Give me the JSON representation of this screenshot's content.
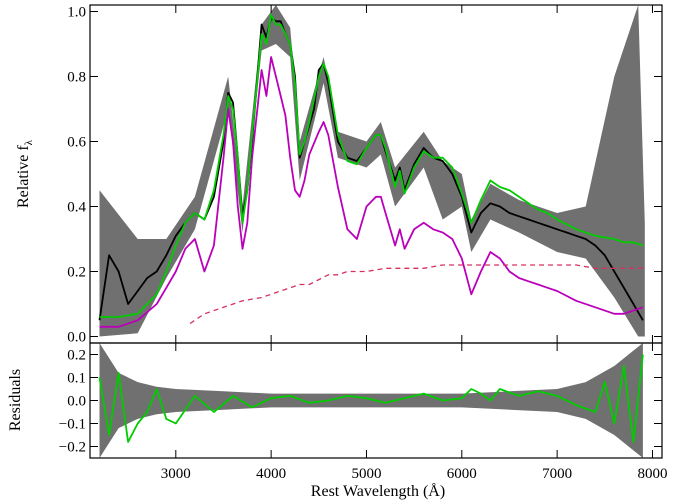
{
  "chart_data": [
    {
      "type": "line",
      "panel": "top",
      "ylabel": "Relative f",
      "ylabel_sub": "λ",
      "xlim": [
        2100,
        8100
      ],
      "ylim": [
        -0.02,
        1.02
      ],
      "x_ticks": [
        3000,
        4000,
        5000,
        6000,
        7000,
        8000
      ],
      "y_ticks": [
        0.0,
        0.2,
        0.4,
        0.6,
        0.8,
        1.0
      ],
      "y_tick_labels": [
        "0.0",
        "0.2",
        "0.4",
        "0.6",
        "0.8",
        "1.0"
      ],
      "grid": false,
      "series": [
        {
          "style": "gray band",
          "color": "#707070",
          "x": [
            2200,
            2600,
            2900,
            3200,
            3550,
            3700,
            3900,
            4050,
            4200,
            4300,
            4550,
            4700,
            5000,
            5150,
            5300,
            5600,
            5800,
            6000,
            6100,
            6300,
            6600,
            7000,
            7300,
            7600,
            7850,
            7920
          ],
          "low": [
            0.0,
            0.01,
            0.18,
            0.33,
            0.7,
            0.32,
            0.88,
            0.9,
            0.86,
            0.48,
            0.78,
            0.55,
            0.52,
            0.56,
            0.4,
            0.52,
            0.36,
            0.4,
            0.26,
            0.36,
            0.32,
            0.26,
            0.24,
            0.12,
            0.0,
            0.0
          ],
          "high": [
            0.45,
            0.3,
            0.3,
            0.43,
            0.8,
            0.4,
            0.96,
            1.02,
            0.95,
            0.6,
            0.86,
            0.63,
            0.6,
            0.66,
            0.52,
            0.63,
            0.54,
            0.5,
            0.36,
            0.47,
            0.42,
            0.38,
            0.4,
            0.8,
            1.02,
            0.35
          ]
        },
        {
          "name": "",
          "style": "observed spectrum",
          "color": "#000000",
          "x": [
            2200,
            2300,
            2400,
            2500,
            2600,
            2700,
            2800,
            2900,
            3000,
            3100,
            3200,
            3300,
            3400,
            3500,
            3550,
            3600,
            3650,
            3700,
            3750,
            3800,
            3900,
            3950,
            4000,
            4050,
            4100,
            4150,
            4200,
            4250,
            4300,
            4350,
            4400,
            4450,
            4500,
            4550,
            4600,
            4700,
            4800,
            4900,
            5000,
            5100,
            5150,
            5200,
            5300,
            5350,
            5400,
            5500,
            5600,
            5700,
            5800,
            5900,
            6000,
            6100,
            6200,
            6300,
            6400,
            6500,
            6600,
            6700,
            6800,
            6900,
            7000,
            7100,
            7200,
            7300,
            7400,
            7500,
            7600,
            7700,
            7800,
            7900
          ],
          "y": [
            0.05,
            0.25,
            0.2,
            0.1,
            0.14,
            0.18,
            0.2,
            0.25,
            0.31,
            0.35,
            0.38,
            0.36,
            0.43,
            0.6,
            0.75,
            0.72,
            0.55,
            0.37,
            0.45,
            0.6,
            0.96,
            0.92,
            0.98,
            0.97,
            0.97,
            0.93,
            0.9,
            0.8,
            0.55,
            0.6,
            0.65,
            0.7,
            0.82,
            0.84,
            0.78,
            0.6,
            0.55,
            0.54,
            0.58,
            0.62,
            0.62,
            0.57,
            0.48,
            0.52,
            0.45,
            0.53,
            0.58,
            0.55,
            0.54,
            0.5,
            0.43,
            0.32,
            0.38,
            0.41,
            0.4,
            0.38,
            0.37,
            0.36,
            0.35,
            0.34,
            0.33,
            0.32,
            0.31,
            0.3,
            0.28,
            0.25,
            0.2,
            0.15,
            0.1,
            0.05
          ]
        },
        {
          "name": "",
          "style": "model fit",
          "color": "#00cc00",
          "x": [
            2200,
            2400,
            2600,
            2800,
            2900,
            3000,
            3100,
            3200,
            3300,
            3400,
            3500,
            3550,
            3600,
            3650,
            3700,
            3750,
            3800,
            3900,
            3950,
            4000,
            4050,
            4100,
            4150,
            4200,
            4250,
            4300,
            4350,
            4400,
            4500,
            4550,
            4600,
            4700,
            4800,
            4900,
            5000,
            5100,
            5150,
            5200,
            5300,
            5350,
            5400,
            5500,
            5600,
            5700,
            5800,
            5900,
            6000,
            6100,
            6200,
            6300,
            6400,
            6500,
            6600,
            6700,
            6800,
            6900,
            7000,
            7200,
            7400,
            7600,
            7700,
            7800,
            7900
          ],
          "y": [
            0.06,
            0.06,
            0.07,
            0.13,
            0.2,
            0.28,
            0.35,
            0.38,
            0.36,
            0.45,
            0.62,
            0.74,
            0.7,
            0.55,
            0.35,
            0.45,
            0.62,
            0.93,
            0.9,
            0.99,
            0.96,
            0.96,
            0.93,
            0.9,
            0.78,
            0.56,
            0.6,
            0.66,
            0.8,
            0.84,
            0.8,
            0.62,
            0.54,
            0.53,
            0.58,
            0.62,
            0.62,
            0.58,
            0.46,
            0.51,
            0.44,
            0.52,
            0.57,
            0.55,
            0.55,
            0.52,
            0.44,
            0.35,
            0.42,
            0.48,
            0.46,
            0.45,
            0.43,
            0.41,
            0.39,
            0.38,
            0.36,
            0.33,
            0.31,
            0.3,
            0.29,
            0.29,
            0.28
          ]
        },
        {
          "name": "",
          "style": "component",
          "color": "#bb00bb",
          "x": [
            2200,
            2400,
            2600,
            2800,
            2900,
            3000,
            3100,
            3200,
            3300,
            3400,
            3500,
            3550,
            3600,
            3650,
            3700,
            3750,
            3800,
            3900,
            3950,
            4000,
            4050,
            4100,
            4150,
            4200,
            4250,
            4300,
            4350,
            4400,
            4500,
            4550,
            4600,
            4700,
            4800,
            4900,
            5000,
            5100,
            5150,
            5200,
            5300,
            5350,
            5400,
            5500,
            5600,
            5700,
            5800,
            5900,
            6000,
            6100,
            6200,
            6300,
            6400,
            6500,
            6600,
            6700,
            6800,
            6900,
            7000,
            7200,
            7400,
            7600,
            7700,
            7800,
            7900
          ],
          "y": [
            0.03,
            0.03,
            0.05,
            0.1,
            0.15,
            0.2,
            0.27,
            0.3,
            0.2,
            0.28,
            0.55,
            0.7,
            0.6,
            0.4,
            0.27,
            0.35,
            0.55,
            0.82,
            0.74,
            0.86,
            0.8,
            0.74,
            0.68,
            0.55,
            0.45,
            0.43,
            0.48,
            0.56,
            0.63,
            0.66,
            0.62,
            0.46,
            0.33,
            0.3,
            0.4,
            0.43,
            0.43,
            0.38,
            0.28,
            0.33,
            0.27,
            0.33,
            0.35,
            0.33,
            0.32,
            0.3,
            0.24,
            0.13,
            0.2,
            0.26,
            0.24,
            0.2,
            0.18,
            0.17,
            0.16,
            0.15,
            0.14,
            0.11,
            0.09,
            0.07,
            0.07,
            0.08,
            0.09
          ]
        },
        {
          "name": "",
          "style": "dashed component",
          "color": "#d6305f",
          "x": [
            3150,
            3300,
            3500,
            3700,
            3900,
            4100,
            4300,
            4400,
            4600,
            4700,
            4800,
            5000,
            5200,
            5400,
            5600,
            5800,
            6000,
            6200,
            6400,
            6600,
            6800,
            7000,
            7200,
            7400,
            7600,
            7800,
            7900
          ],
          "y": [
            0.04,
            0.07,
            0.09,
            0.11,
            0.12,
            0.14,
            0.16,
            0.16,
            0.19,
            0.19,
            0.2,
            0.2,
            0.21,
            0.21,
            0.21,
            0.22,
            0.22,
            0.22,
            0.22,
            0.22,
            0.22,
            0.22,
            0.22,
            0.21,
            0.21,
            0.21,
            0.21
          ]
        }
      ]
    },
    {
      "type": "line",
      "panel": "bottom",
      "xlabel": "Rest Wavelength (Å)",
      "ylabel": "Residuals",
      "xlim": [
        2100,
        8100
      ],
      "ylim": [
        -0.25,
        0.25
      ],
      "x_ticks": [
        3000,
        4000,
        5000,
        6000,
        7000,
        8000
      ],
      "x_tick_labels": [
        "3000",
        "4000",
        "5000",
        "6000",
        "7000",
        "8000"
      ],
      "y_ticks": [
        -0.2,
        -0.1,
        0.0,
        0.1,
        0.2
      ],
      "y_tick_labels": [
        "−0.2",
        "−0.1",
        "0.0",
        "0.1",
        "0.2"
      ],
      "grid": false,
      "series": [
        {
          "style": "gray band",
          "color": "#707070",
          "x": [
            2200,
            2400,
            2600,
            2800,
            3000,
            3500,
            4000,
            4500,
            5000,
            5500,
            6000,
            6500,
            7000,
            7300,
            7600,
            7900
          ],
          "low": [
            -0.25,
            -0.12,
            -0.08,
            -0.06,
            -0.05,
            -0.04,
            -0.03,
            -0.03,
            -0.03,
            -0.03,
            -0.03,
            -0.04,
            -0.05,
            -0.08,
            -0.15,
            -0.25
          ],
          "high": [
            0.25,
            0.12,
            0.08,
            0.06,
            0.05,
            0.04,
            0.03,
            0.03,
            0.03,
            0.03,
            0.03,
            0.04,
            0.05,
            0.08,
            0.15,
            0.25
          ]
        },
        {
          "name": "",
          "style": "residuals",
          "color": "#00cc00",
          "x": [
            2200,
            2300,
            2400,
            2500,
            2600,
            2700,
            2800,
            2900,
            3000,
            3200,
            3400,
            3600,
            3800,
            4000,
            4200,
            4400,
            4600,
            4800,
            5000,
            5200,
            5400,
            5600,
            5800,
            6000,
            6100,
            6200,
            6300,
            6400,
            6600,
            6800,
            7000,
            7200,
            7400,
            7500,
            7600,
            7700,
            7800,
            7900
          ],
          "y": [
            0.1,
            -0.15,
            0.12,
            -0.18,
            -0.1,
            -0.05,
            0.05,
            -0.08,
            -0.1,
            0.02,
            -0.05,
            0.02,
            -0.03,
            0.01,
            0.02,
            -0.01,
            0.0,
            0.02,
            0.01,
            -0.01,
            0.01,
            0.03,
            0.0,
            0.01,
            0.05,
            0.03,
            0.0,
            0.05,
            0.02,
            0.04,
            0.02,
            -0.02,
            -0.05,
            0.08,
            -0.1,
            0.15,
            -0.18,
            0.2
          ]
        }
      ]
    }
  ]
}
